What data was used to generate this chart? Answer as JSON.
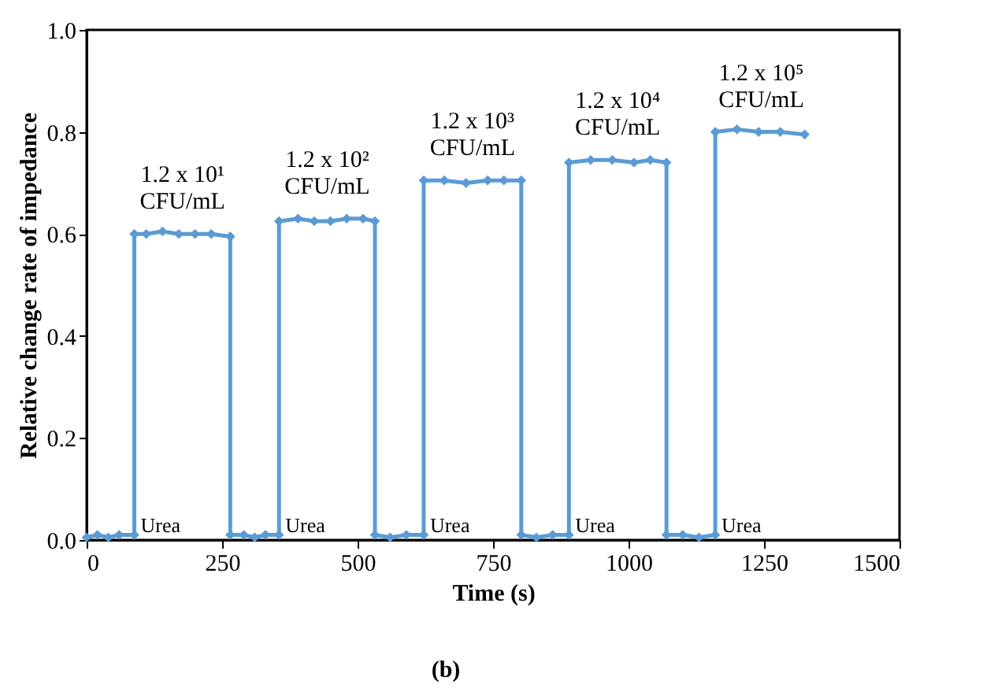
{
  "chart_data": {
    "type": "line",
    "xlabel": "Time (s)",
    "ylabel": "Relative change rate of impedance",
    "x": [
      0,
      20,
      40,
      60,
      88,
      88,
      110,
      140,
      170,
      200,
      230,
      265,
      265,
      290,
      310,
      330,
      355,
      355,
      390,
      420,
      450,
      480,
      510,
      532,
      532,
      560,
      590,
      622,
      622,
      660,
      700,
      740,
      770,
      802,
      802,
      830,
      860,
      890,
      890,
      930,
      970,
      1010,
      1040,
      1070,
      1070,
      1100,
      1130,
      1160,
      1160,
      1200,
      1240,
      1280,
      1325
    ],
    "series": [
      {
        "color": "#5b9bd5",
        "values": [
          0.005,
          0.01,
          0.005,
          0.01,
          0.01,
          0.6,
          0.6,
          0.605,
          0.6,
          0.6,
          0.6,
          0.595,
          0.01,
          0.01,
          0.005,
          0.01,
          0.01,
          0.625,
          0.63,
          0.625,
          0.625,
          0.63,
          0.63,
          0.625,
          0.01,
          0.005,
          0.01,
          0.01,
          0.705,
          0.705,
          0.7,
          0.705,
          0.705,
          0.705,
          0.01,
          0.005,
          0.01,
          0.01,
          0.74,
          0.745,
          0.745,
          0.74,
          0.745,
          0.74,
          0.01,
          0.01,
          0.005,
          0.01,
          0.8,
          0.805,
          0.8,
          0.8,
          0.795
        ]
      }
    ],
    "marker": "diamond",
    "line_style": "solid",
    "grid": false,
    "xlim": [
      0,
      1500
    ],
    "xticks": [
      0,
      250,
      500,
      750,
      1000,
      1250,
      1500
    ],
    "ylim": [
      0,
      1
    ],
    "yticks": [
      {
        "value": 0,
        "label": "0.0"
      },
      {
        "value": 0.2,
        "label": "0.2"
      },
      {
        "value": 0.4,
        "label": "0.4"
      },
      {
        "value": 0.6,
        "label": "0.6"
      },
      {
        "value": 0.8,
        "label": "0.8"
      },
      {
        "value": 1,
        "label": "1.0"
      }
    ],
    "annotations": [
      {
        "text": "1.2 x 10¹\nCFU/mL",
        "x": 177,
        "y": 0.6
      },
      {
        "text": "1.2 x 10²\nCFU/mL",
        "x": 444,
        "y": 0.63
      },
      {
        "text": "1.2 x 10³\nCFU/mL",
        "x": 712,
        "y": 0.705
      },
      {
        "text": "1.2 x 10⁴\nCFU/mL",
        "x": 980,
        "y": 0.745
      },
      {
        "text": "1.2 x 10⁵\nCFU/mL",
        "x": 1245,
        "y": 0.8
      },
      {
        "text": "Urea",
        "x": 88,
        "y": 0
      },
      {
        "text": "Urea",
        "x": 355,
        "y": 0
      },
      {
        "text": "Urea",
        "x": 622,
        "y": 0
      },
      {
        "text": "Urea",
        "x": 890,
        "y": 0
      },
      {
        "text": "Urea",
        "x": 1160,
        "y": 0
      },
      "(b)"
    ]
  }
}
